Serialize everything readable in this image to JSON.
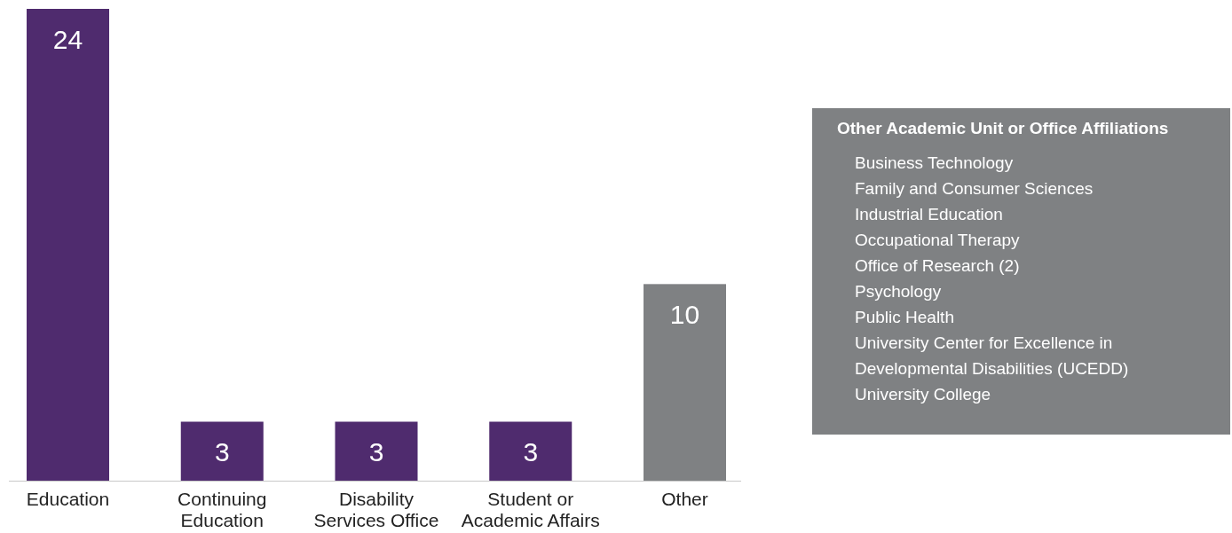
{
  "chart_data": {
    "type": "bar",
    "categories": [
      "Education",
      "Continuing Education",
      "Disability Services Office",
      "Student or Academic Affairs",
      "Other"
    ],
    "values": [
      24,
      3,
      3,
      3,
      10
    ],
    "colors": [
      "#4f2b6e",
      "#4f2b6e",
      "#4f2b6e",
      "#4f2b6e",
      "#7f8183"
    ],
    "data_labels": true,
    "annotations": [
      "Other Academic Unit or Office Affiliations",
      "Business Technology",
      "Family and Consumer Sciences",
      "Industrial Education",
      "Occupational Therapy",
      "Office of Research (2)",
      "Psychology",
      "Public Health",
      "University Center for Excellence in\nDevelopmental Disabilities (UCEDD)",
      "University College"
    ]
  }
}
